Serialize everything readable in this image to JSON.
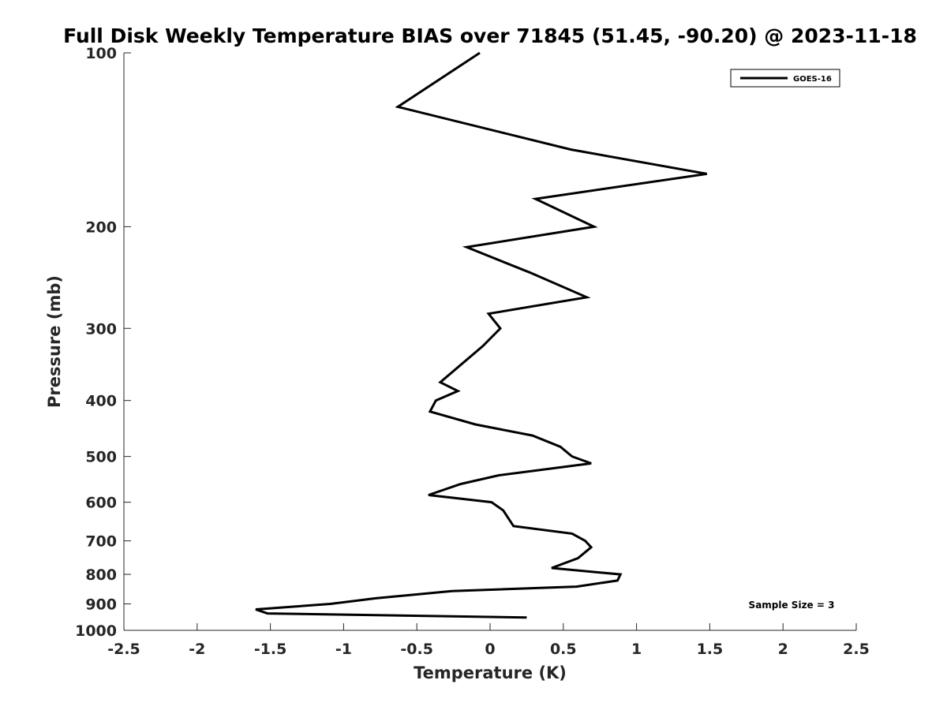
{
  "chart_data": {
    "type": "line",
    "title": "Full Disk Weekly Temperature BIAS over 71845 (51.45, -90.20) @ 2023-11-18",
    "xlabel": "Temperature (K)",
    "ylabel": "Pressure (mb)",
    "xlim": [
      -2.5,
      2.5
    ],
    "ylim": [
      100,
      1000
    ],
    "y_scale": "log",
    "y_reversed": true,
    "grid": false,
    "x_ticks": [
      -2.5,
      -2,
      -1.5,
      -1,
      -0.5,
      0,
      0.5,
      1,
      1.5,
      2,
      2.5
    ],
    "x_tick_labels": [
      "-2.5",
      "-2",
      "-1.5",
      "-1",
      "-0.5",
      "0",
      "0.5",
      "1",
      "1.5",
      "2",
      "2.5"
    ],
    "y_ticks": [
      100,
      200,
      300,
      400,
      500,
      600,
      700,
      800,
      900,
      1000
    ],
    "y_tick_labels": [
      "100",
      "200",
      "300",
      "400",
      "500",
      "600",
      "700",
      "800",
      "900",
      "1000"
    ],
    "legend": {
      "position": "top-right",
      "entries": [
        "GOES-16"
      ]
    },
    "annotation": "Sample Size = 3",
    "series": [
      {
        "name": "GOES-16",
        "color": "#000000",
        "points": [
          {
            "x": -0.07,
            "p": 100
          },
          {
            "x": -0.63,
            "p": 124
          },
          {
            "x": 0.55,
            "p": 147
          },
          {
            "x": 1.48,
            "p": 162
          },
          {
            "x": 0.31,
            "p": 179
          },
          {
            "x": 0.71,
            "p": 200
          },
          {
            "x": -0.16,
            "p": 217
          },
          {
            "x": 0.27,
            "p": 240
          },
          {
            "x": 0.66,
            "p": 265
          },
          {
            "x": -0.01,
            "p": 283
          },
          {
            "x": 0.07,
            "p": 300
          },
          {
            "x": -0.05,
            "p": 322
          },
          {
            "x": -0.34,
            "p": 372
          },
          {
            "x": -0.22,
            "p": 385
          },
          {
            "x": -0.37,
            "p": 400
          },
          {
            "x": -0.41,
            "p": 418
          },
          {
            "x": -0.1,
            "p": 440
          },
          {
            "x": 0.29,
            "p": 460
          },
          {
            "x": 0.48,
            "p": 481
          },
          {
            "x": 0.56,
            "p": 500
          },
          {
            "x": 0.69,
            "p": 514
          },
          {
            "x": 0.06,
            "p": 539
          },
          {
            "x": -0.2,
            "p": 558
          },
          {
            "x": -0.42,
            "p": 583
          },
          {
            "x": 0.01,
            "p": 600
          },
          {
            "x": 0.09,
            "p": 620
          },
          {
            "x": 0.16,
            "p": 660
          },
          {
            "x": 0.56,
            "p": 680
          },
          {
            "x": 0.65,
            "p": 700
          },
          {
            "x": 0.69,
            "p": 718
          },
          {
            "x": 0.6,
            "p": 750
          },
          {
            "x": 0.42,
            "p": 780
          },
          {
            "x": 0.89,
            "p": 800
          },
          {
            "x": 0.87,
            "p": 820
          },
          {
            "x": 0.59,
            "p": 840
          },
          {
            "x": -0.26,
            "p": 855
          },
          {
            "x": -0.78,
            "p": 880
          },
          {
            "x": -1.09,
            "p": 900
          },
          {
            "x": -1.6,
            "p": 920
          },
          {
            "x": -1.52,
            "p": 935
          },
          {
            "x": 0.25,
            "p": 950
          }
        ]
      }
    ]
  }
}
